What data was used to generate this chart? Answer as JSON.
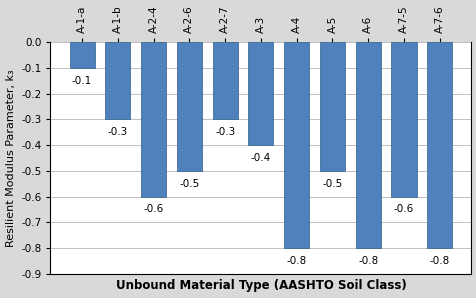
{
  "categories": [
    "A-1-a",
    "A-1-b",
    "A-2-4",
    "A-2-6",
    "A-2-7",
    "A-3",
    "A-4",
    "A-5",
    "A-6",
    "A-7-5",
    "A-7-6"
  ],
  "values": [
    -0.1,
    -0.3,
    -0.6,
    -0.5,
    -0.3,
    -0.4,
    -0.8,
    -0.5,
    -0.8,
    -0.6,
    -0.8
  ],
  "bar_color": "#4F81BD",
  "bar_edge_color": "#2E5F8A",
  "xlabel": "Unbound Material Type (AASHTO Soil Class)",
  "ylabel": "Resilient Modulus Parameter, k₃",
  "ylim": [
    -0.9,
    0.0
  ],
  "yticks": [
    0.0,
    -0.1,
    -0.2,
    -0.3,
    -0.4,
    -0.5,
    -0.6,
    -0.7,
    -0.8,
    -0.9
  ],
  "label_fontsize": 7.5,
  "tick_fontsize": 7.5,
  "xlabel_fontsize": 8.5,
  "ylabel_fontsize": 8,
  "background_color": "#D9D9D9",
  "plot_bg_color": "#FFFFFF",
  "grid_color": "#BEBEBE"
}
